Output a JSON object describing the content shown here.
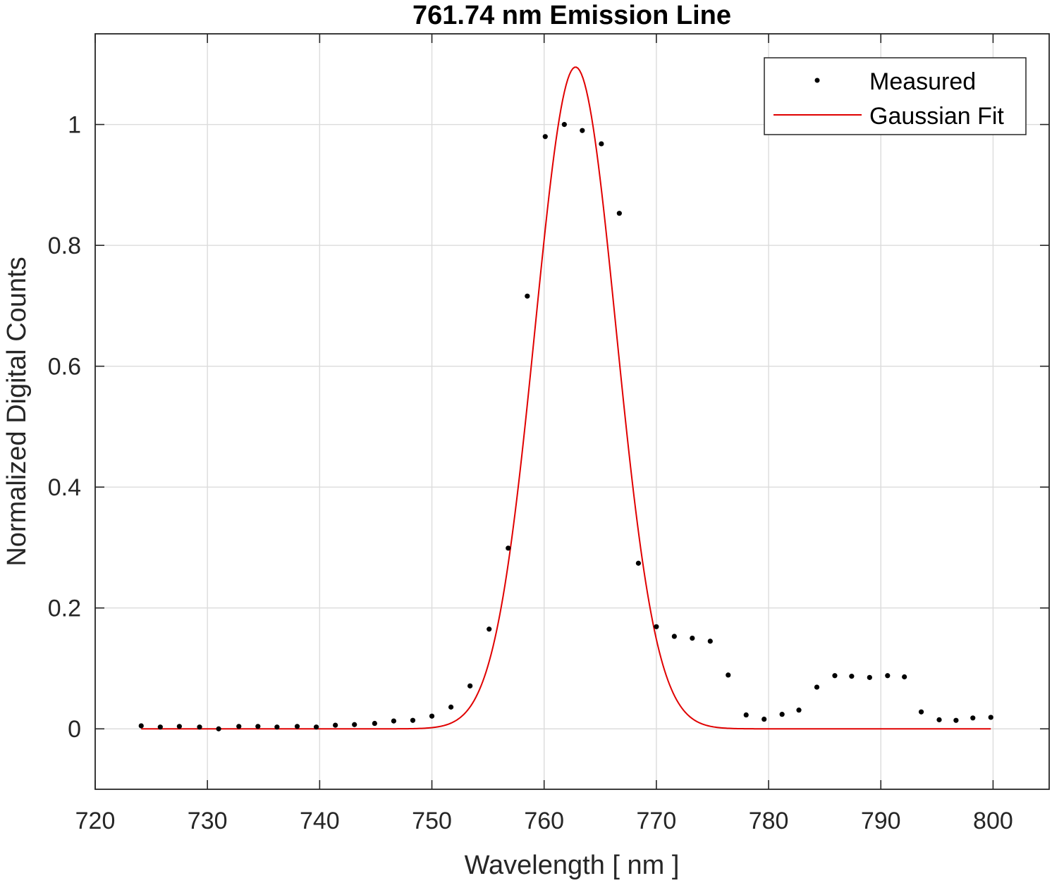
{
  "chart_data": {
    "type": "scatter",
    "title": "761.74 nm Emission Line",
    "xlabel": "Wavelength [ nm ]",
    "ylabel": "Normalized Digital Counts",
    "xlim": [
      720,
      805
    ],
    "ylim": [
      -0.1,
      1.15
    ],
    "xticks": [
      720,
      730,
      740,
      750,
      760,
      770,
      780,
      790,
      800
    ],
    "yticks": [
      0,
      0.2,
      0.4,
      0.6,
      0.8,
      1
    ],
    "xtick_labels": [
      "720",
      "730",
      "740",
      "750",
      "760",
      "770",
      "780",
      "790",
      "800"
    ],
    "ytick_labels": [
      "0",
      "0.2",
      "0.4",
      "0.6",
      "0.8",
      "1"
    ],
    "grid": true,
    "legend_position": "top-right",
    "series": [
      {
        "name": "Measured",
        "kind": "markers",
        "color": "#000000",
        "x": [
          724.1,
          725.8,
          727.5,
          729.3,
          731.0,
          732.8,
          734.5,
          736.2,
          738.0,
          739.7,
          741.4,
          743.1,
          744.9,
          746.6,
          748.3,
          750.0,
          751.7,
          753.4,
          755.1,
          756.8,
          758.5,
          760.1,
          761.8,
          763.4,
          765.1,
          766.7,
          768.4,
          770.0,
          771.6,
          773.2,
          774.8,
          776.4,
          778.0,
          779.6,
          781.2,
          782.7,
          784.3,
          785.9,
          787.4,
          789.0,
          790.6,
          792.1,
          793.6,
          795.2,
          796.7,
          798.2,
          799.8
        ],
        "y": [
          0.005,
          0.003,
          0.004,
          0.003,
          0.0,
          0.004,
          0.004,
          0.003,
          0.004,
          0.003,
          0.006,
          0.007,
          0.009,
          0.013,
          0.014,
          0.021,
          0.036,
          0.071,
          0.165,
          0.299,
          0.716,
          0.98,
          1.0,
          0.99,
          0.968,
          0.853,
          0.274,
          0.169,
          0.153,
          0.15,
          0.145,
          0.089,
          0.023,
          0.016,
          0.024,
          0.031,
          0.069,
          0.088,
          0.087,
          0.085,
          0.088,
          0.086,
          0.028,
          0.015,
          0.014,
          0.018,
          0.019
        ]
      },
      {
        "name": "Gaussian Fit",
        "kind": "line",
        "color": "#e00000",
        "model": "gaussian",
        "amplitude": 1.095,
        "center": 762.8,
        "sigma": 3.6,
        "x_range": [
          724.1,
          799.8
        ]
      }
    ]
  }
}
